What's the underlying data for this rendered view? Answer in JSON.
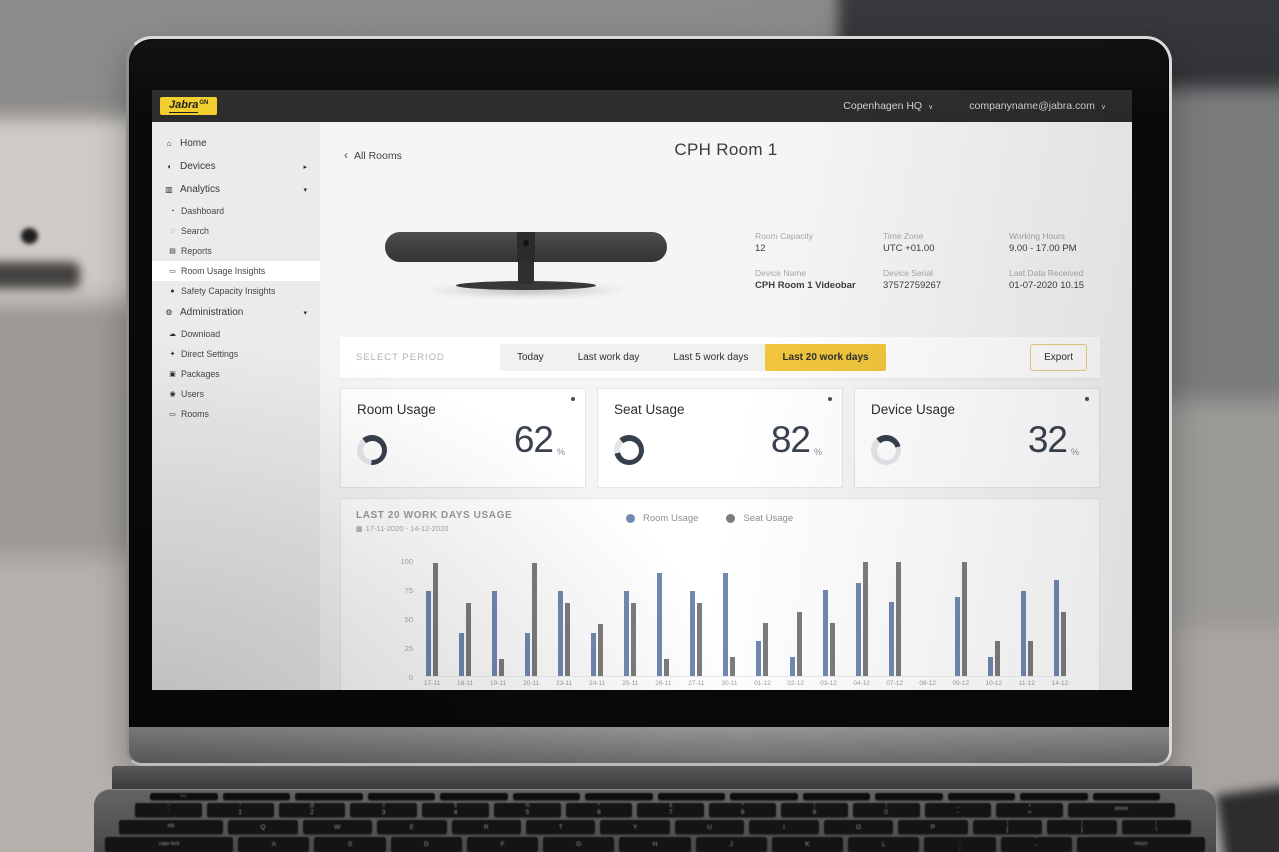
{
  "brand": {
    "name": "Jabra",
    "suffix": "GN"
  },
  "topbar": {
    "org": "Copenhagen HQ",
    "account": "companyname@jabra.com",
    "dropdown_glyph": "∨"
  },
  "sidebar": {
    "items": [
      {
        "label": "Home",
        "icon": "home-icon",
        "glyph": "⌂",
        "level": 0
      },
      {
        "label": "Devices",
        "icon": "headset-icon",
        "glyph": "◖",
        "level": 0,
        "chevron": "▸"
      },
      {
        "label": "Analytics",
        "icon": "bar-chart-icon",
        "glyph": "▥",
        "level": 0,
        "chevron": "▾"
      },
      {
        "label": "Dashboard",
        "icon": "dashboard-icon",
        "glyph": "◔",
        "level": 1
      },
      {
        "label": "Search",
        "icon": "search-icon",
        "glyph": "◌",
        "level": 1
      },
      {
        "label": "Reports",
        "icon": "reports-icon",
        "glyph": "▤",
        "level": 1
      },
      {
        "label": "Room Usage Insights",
        "icon": "room-usage-icon",
        "glyph": "▭",
        "level": 1,
        "active": true
      },
      {
        "label": "Safety Capacity Insights",
        "icon": "safety-capacity-icon",
        "glyph": "●",
        "level": 1
      },
      {
        "label": "Administration",
        "icon": "gears-icon",
        "glyph": "⚙",
        "level": 0,
        "chevron": "▾"
      },
      {
        "label": "Download",
        "icon": "cloud-download-icon",
        "glyph": "☁",
        "level": 1
      },
      {
        "label": "Direct Settings",
        "icon": "wrench-icon",
        "glyph": "✦",
        "level": 1
      },
      {
        "label": "Packages",
        "icon": "package-icon",
        "glyph": "▣",
        "level": 1
      },
      {
        "label": "Users",
        "icon": "users-icon",
        "glyph": "◉",
        "level": 1
      },
      {
        "label": "Rooms",
        "icon": "rooms-icon",
        "glyph": "▭",
        "level": 1
      }
    ]
  },
  "page": {
    "back_label": "All Rooms",
    "back_glyph": "‹",
    "title": "CPH Room 1"
  },
  "device_info": {
    "fields": [
      {
        "label": "Room Capacity",
        "value": "12"
      },
      {
        "label": "Time Zone",
        "value": "UTC +01.00"
      },
      {
        "label": "Working Hours",
        "value": "9.00 - 17.00 PM"
      },
      {
        "label": "Device Name",
        "value": "CPH Room 1 Videobar",
        "bold": true
      },
      {
        "label": "Device Serial",
        "value": "37572759267"
      },
      {
        "label": "Last Data Received",
        "value": "01-07-2020 10.15"
      }
    ]
  },
  "period": {
    "label": "SELECT PERIOD",
    "options": [
      "Today",
      "Last work day",
      "Last 5 work days",
      "Last 20 work days"
    ],
    "selected": "Last 20 work days",
    "export_label": "Export"
  },
  "usage_cards": [
    {
      "title": "Room Usage",
      "value": 62,
      "unit": "%"
    },
    {
      "title": "Seat Usage",
      "value": 82,
      "unit": "%"
    },
    {
      "title": "Device Usage",
      "value": 32,
      "unit": "%"
    }
  ],
  "chart_data": {
    "type": "bar",
    "title": "LAST 20 WORK DAYS USAGE",
    "date_range": "17-11-2020 - 14-12-2020",
    "categories": [
      "17-11",
      "18-11",
      "19-11",
      "20-11",
      "23-11",
      "24-11",
      "25-11",
      "26-11",
      "27-11",
      "30-11",
      "01-12",
      "02-12",
      "03-12",
      "04-12",
      "07-12",
      "08-12",
      "09-12",
      "10-12",
      "11-12",
      "14-12"
    ],
    "series": [
      {
        "name": "Room Usage",
        "color": "#7289b2",
        "values": [
          73,
          37,
          73,
          37,
          73,
          37,
          73,
          89,
          73,
          89,
          30,
          16,
          74,
          80,
          64,
          0,
          68,
          16,
          73,
          83
        ]
      },
      {
        "name": "Seat Usage",
        "color": "#7d7d7d",
        "values": [
          97,
          63,
          15,
          97,
          63,
          45,
          63,
          15,
          63,
          16,
          46,
          55,
          46,
          98,
          98,
          0,
          98,
          30,
          30,
          55
        ]
      }
    ],
    "ylim": [
      0,
      100
    ],
    "yticks": [
      0,
      25,
      50,
      75,
      100
    ],
    "grid": false,
    "legend_position": "top-center"
  },
  "colors": {
    "accent_yellow": "#f2c63d",
    "slate": "#37404d",
    "ring_track": "#e4e7ea",
    "bar_blue": "#7289b2",
    "bar_gray": "#7d7d7d",
    "topbar_bg": "#2c2c2d",
    "logo_yellow": "#f2cf2e"
  },
  "keyboard": {
    "function_row": [
      "esc",
      "",
      "",
      "",
      "",
      "",
      "",
      "",
      "",
      "",
      "",
      "",
      "",
      ""
    ],
    "number_row": [
      {
        "shift": "~",
        "main": "`"
      },
      {
        "shift": "!",
        "main": "1"
      },
      {
        "shift": "@",
        "main": "2"
      },
      {
        "shift": "#",
        "main": "3"
      },
      {
        "shift": "$",
        "main": "4"
      },
      {
        "shift": "%",
        "main": "5"
      },
      {
        "shift": "^",
        "main": "6"
      },
      {
        "shift": "&",
        "main": "7"
      },
      {
        "shift": "*",
        "main": "8"
      },
      {
        "shift": "(",
        "main": "9"
      },
      {
        "shift": ")",
        "main": "0"
      },
      {
        "shift": "_",
        "main": "-"
      },
      {
        "shift": "+",
        "main": "="
      },
      {
        "main": "delete",
        "wide": 1.6,
        "small": true
      }
    ],
    "qwerty_row": [
      {
        "main": "tab",
        "wide": 1.5,
        "small": true
      },
      {
        "main": "Q"
      },
      {
        "main": "W"
      },
      {
        "main": "E"
      },
      {
        "main": "R"
      },
      {
        "main": "T"
      },
      {
        "main": "Y"
      },
      {
        "main": "U"
      },
      {
        "main": "I"
      },
      {
        "main": "O"
      },
      {
        "main": "P"
      },
      {
        "shift": "{",
        "main": "["
      },
      {
        "shift": "}",
        "main": "]"
      },
      {
        "shift": "|",
        "main": "\\"
      }
    ],
    "home_row": [
      {
        "main": "caps lock",
        "wide": 1.8,
        "small": true
      },
      {
        "main": "A"
      },
      {
        "main": "S"
      },
      {
        "main": "D"
      },
      {
        "main": "F"
      },
      {
        "main": "G"
      },
      {
        "main": "H"
      },
      {
        "main": "J"
      },
      {
        "main": "K"
      },
      {
        "main": "L"
      },
      {
        "shift": ":",
        "main": ";"
      },
      {
        "shift": "\"",
        "main": "'"
      },
      {
        "main": "return",
        "wide": 1.8,
        "small": true
      }
    ]
  }
}
